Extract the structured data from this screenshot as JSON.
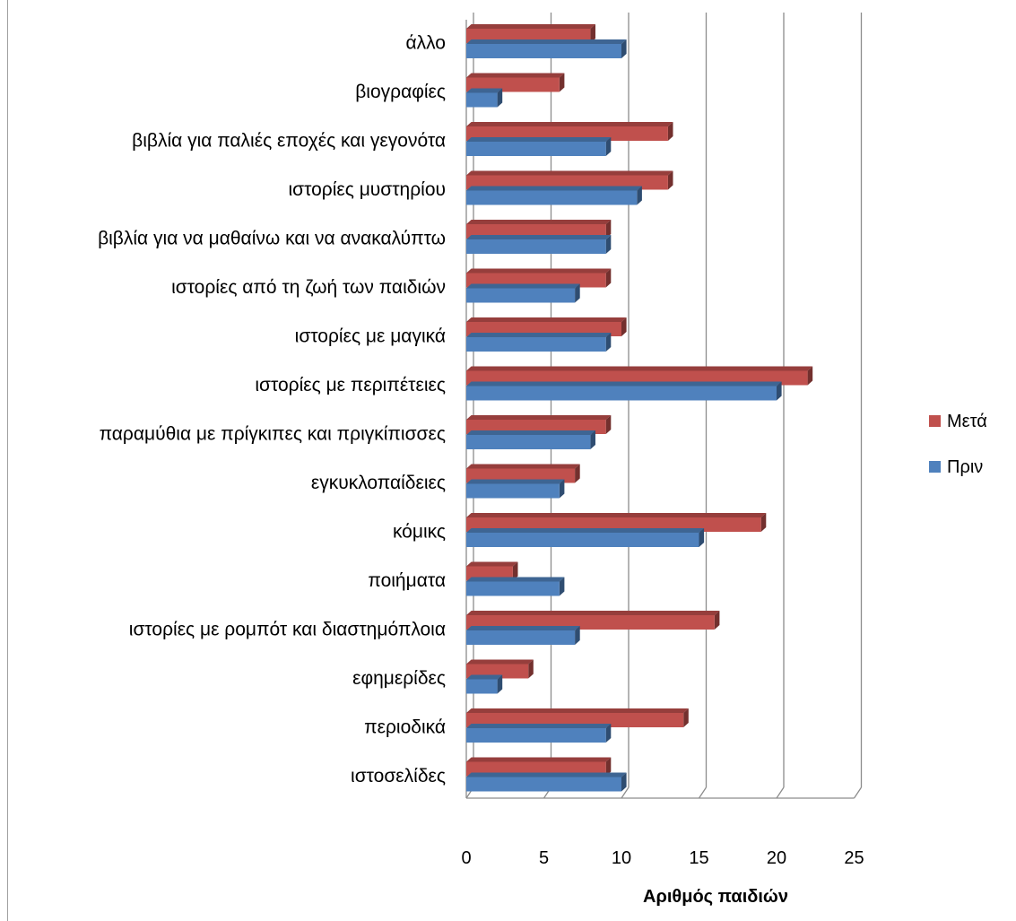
{
  "chart_data": {
    "type": "bar",
    "orientation": "horizontal",
    "style": "3d-clustered",
    "categories": [
      "ιστοσελίδες",
      "περιοδικά",
      "εφημερίδες",
      "ιστορίες με ρομπότ και διαστημόπλοια",
      "ποιήματα",
      "κόμικς",
      "εγκυκλοπαίδειες",
      "παραμύθια με πρίγκιπες και πριγκίπισσες",
      "ιστορίες με περιπέτειες",
      "ιστορίες με μαγικά",
      "ιστορίες από τη ζωή των παιδιών",
      "βιβλία για να μαθαίνω και να ανακαλύπτω",
      "ιστορίες μυστηρίου",
      "βιβλία για παλιές εποχές και γεγονότα",
      "βιογραφίες",
      "άλλο"
    ],
    "series": [
      {
        "name": "Πριν",
        "color": "#4f81bd",
        "values": [
          10,
          9,
          2,
          7,
          6,
          15,
          6,
          8,
          20,
          9,
          7,
          9,
          11,
          9,
          2,
          10
        ]
      },
      {
        "name": "Μετά",
        "color": "#c0504d",
        "values": [
          9,
          14,
          4,
          16,
          3,
          19,
          7,
          9,
          22,
          10,
          9,
          9,
          13,
          13,
          6,
          8
        ]
      }
    ],
    "xlabel": "Αριθμός παιδιών",
    "ylabel": "",
    "xlim": [
      0,
      25
    ],
    "xticks": [
      "0",
      "5",
      "10",
      "15",
      "20",
      "25"
    ],
    "grid": true,
    "legend": {
      "position": "right",
      "order": [
        "Μετά",
        "Πριν"
      ]
    }
  }
}
